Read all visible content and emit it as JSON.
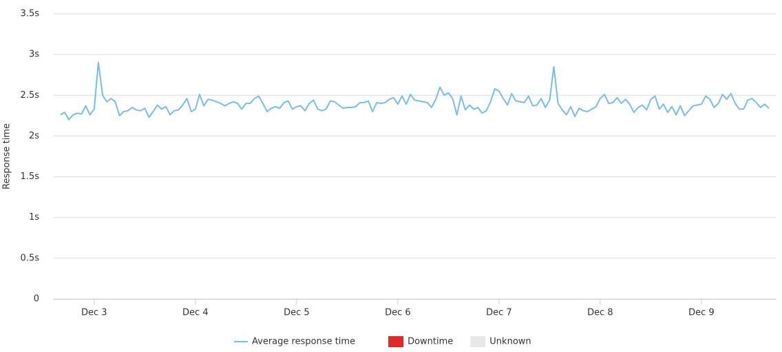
{
  "chart_data": {
    "type": "line",
    "y_label": "Response time",
    "x": [
      -8,
      -7,
      -6,
      -5,
      -4,
      -3,
      -2,
      -1,
      0,
      1,
      2,
      3,
      4,
      5,
      6,
      7,
      8,
      9,
      10,
      11,
      12,
      13,
      14,
      15,
      16,
      17,
      18,
      19,
      20,
      21,
      22,
      23,
      24,
      25,
      26,
      27,
      28,
      29,
      30,
      31,
      32,
      33,
      34,
      35,
      36,
      37,
      38,
      39,
      40,
      41,
      42,
      43,
      44,
      45,
      46,
      47,
      48,
      49,
      50,
      51,
      52,
      53,
      54,
      55,
      56,
      57,
      58,
      59,
      60,
      61,
      62,
      63,
      64,
      65,
      66,
      67,
      68,
      69,
      70,
      71,
      72,
      73,
      74,
      75,
      76,
      77,
      78,
      79,
      80,
      81,
      82,
      83,
      84,
      85,
      86,
      87,
      88,
      89,
      90,
      91,
      92,
      93,
      94,
      95,
      96,
      97,
      98,
      99,
      100,
      101,
      102,
      103,
      104,
      105,
      106,
      107,
      108,
      109,
      110,
      111,
      112,
      113,
      114,
      115,
      116,
      117,
      118,
      119,
      120,
      121,
      122,
      123,
      124,
      125,
      126,
      127,
      128,
      129,
      130,
      131,
      132,
      133,
      134,
      135,
      136,
      137,
      138,
      139,
      140,
      141,
      142,
      143,
      144,
      145,
      146,
      147,
      148,
      149,
      150,
      151,
      152,
      153,
      154,
      155,
      156,
      157,
      158,
      159,
      160
    ],
    "series": [
      {
        "name": "Average response time",
        "color": "#74bdf0",
        "values": [
          2.26,
          2.29,
          2.2,
          2.26,
          2.28,
          2.27,
          2.37,
          2.26,
          2.33,
          2.9,
          2.5,
          2.42,
          2.46,
          2.42,
          2.25,
          2.3,
          2.31,
          2.35,
          2.32,
          2.31,
          2.34,
          2.23,
          2.3,
          2.38,
          2.33,
          2.36,
          2.26,
          2.31,
          2.32,
          2.38,
          2.46,
          2.3,
          2.33,
          2.51,
          2.37,
          2.45,
          2.44,
          2.42,
          2.4,
          2.37,
          2.4,
          2.42,
          2.4,
          2.33,
          2.4,
          2.4,
          2.46,
          2.49,
          2.4,
          2.3,
          2.34,
          2.36,
          2.34,
          2.41,
          2.43,
          2.33,
          2.36,
          2.37,
          2.31,
          2.4,
          2.44,
          2.33,
          2.31,
          2.33,
          2.43,
          2.42,
          2.38,
          2.34,
          2.35,
          2.35,
          2.36,
          2.41,
          2.41,
          2.43,
          2.3,
          2.41,
          2.4,
          2.41,
          2.45,
          2.47,
          2.39,
          2.49,
          2.39,
          2.51,
          2.44,
          2.43,
          2.42,
          2.41,
          2.35,
          2.45,
          2.6,
          2.5,
          2.53,
          2.46,
          2.26,
          2.49,
          2.32,
          2.38,
          2.33,
          2.35,
          2.28,
          2.31,
          2.42,
          2.58,
          2.55,
          2.46,
          2.38,
          2.52,
          2.43,
          2.42,
          2.41,
          2.49,
          2.37,
          2.38,
          2.46,
          2.35,
          2.44,
          2.85,
          2.4,
          2.32,
          2.26,
          2.36,
          2.24,
          2.34,
          2.31,
          2.3,
          2.33,
          2.36,
          2.46,
          2.51,
          2.4,
          2.41,
          2.47,
          2.4,
          2.45,
          2.39,
          2.29,
          2.35,
          2.38,
          2.32,
          2.45,
          2.49,
          2.33,
          2.39,
          2.29,
          2.36,
          2.26,
          2.37,
          2.25,
          2.31,
          2.37,
          2.38,
          2.39,
          2.49,
          2.45,
          2.35,
          2.4,
          2.51,
          2.45,
          2.52,
          2.4,
          2.33,
          2.33,
          2.44,
          2.46,
          2.41,
          2.35,
          2.39,
          2.34
        ]
      }
    ],
    "legend_items": [
      {
        "name": "Downtime",
        "color": "#e02a2a"
      },
      {
        "name": "Unknown",
        "color": "#e8e8e8"
      }
    ],
    "xlim": [
      -9.6,
      161.8
    ],
    "xticks": [
      {
        "value": 0,
        "label": "Dec 3"
      },
      {
        "value": 24,
        "label": "Dec 4"
      },
      {
        "value": 48,
        "label": "Dec 5"
      },
      {
        "value": 72,
        "label": "Dec 6"
      },
      {
        "value": 96,
        "label": "Dec 7"
      },
      {
        "value": 120,
        "label": "Dec 8"
      },
      {
        "value": 144,
        "label": "Dec 9"
      }
    ],
    "ylim": [
      0,
      3.5
    ],
    "yticks": [
      0,
      {
        "value": 0.5,
        "label": "0.5s"
      },
      {
        "value": 1,
        "label": "1s"
      },
      {
        "value": 1.5,
        "label": "1.5s"
      },
      {
        "value": 2,
        "label": "2s"
      },
      {
        "value": 2.5,
        "label": "2.5s"
      },
      {
        "value": 3,
        "label": "3s"
      },
      {
        "value": 3.5,
        "label": "3.5s"
      }
    ],
    "grid": true,
    "legend": "bottom"
  }
}
